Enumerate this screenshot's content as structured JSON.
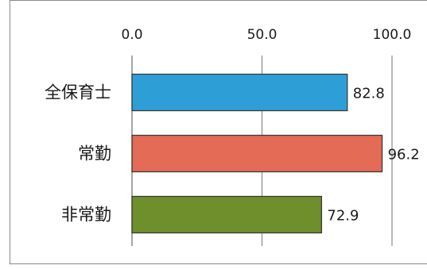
{
  "chart_data": {
    "type": "bar",
    "orientation": "horizontal",
    "categories": [
      "全保育士",
      "常勤",
      "非常勤"
    ],
    "values": [
      82.8,
      96.2,
      72.9
    ],
    "value_labels": [
      "82.8",
      "96.2",
      "72.9"
    ],
    "x_ticks": [
      "0.0",
      "50.0",
      "100.0"
    ],
    "xlim": [
      0,
      100
    ],
    "x_axis_position": "top",
    "grid": "vertical",
    "legend": "none",
    "colors": [
      "#2e9fd6",
      "#e46b55",
      "#6e8f2c"
    ],
    "edge_color": "#3a3a3a",
    "title": "",
    "xlabel": "",
    "ylabel": ""
  }
}
